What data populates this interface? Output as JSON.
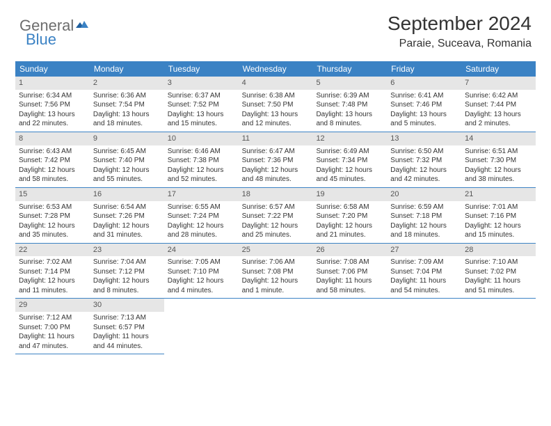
{
  "logo": {
    "part1": "General",
    "part2": "Blue"
  },
  "title": "September 2024",
  "location": "Paraie, Suceava, Romania",
  "colors": {
    "header_bg": "#3b82c4",
    "daynum_bg": "#e6e6e6",
    "border": "#3b82c4",
    "text": "#333333",
    "logo_gray": "#6d6d6d",
    "logo_blue": "#3b82c4"
  },
  "daysOfWeek": [
    "Sunday",
    "Monday",
    "Tuesday",
    "Wednesday",
    "Thursday",
    "Friday",
    "Saturday"
  ],
  "weeks": [
    [
      {
        "n": "1",
        "sr": "Sunrise: 6:34 AM",
        "ss": "Sunset: 7:56 PM",
        "d1": "Daylight: 13 hours",
        "d2": "and 22 minutes."
      },
      {
        "n": "2",
        "sr": "Sunrise: 6:36 AM",
        "ss": "Sunset: 7:54 PM",
        "d1": "Daylight: 13 hours",
        "d2": "and 18 minutes."
      },
      {
        "n": "3",
        "sr": "Sunrise: 6:37 AM",
        "ss": "Sunset: 7:52 PM",
        "d1": "Daylight: 13 hours",
        "d2": "and 15 minutes."
      },
      {
        "n": "4",
        "sr": "Sunrise: 6:38 AM",
        "ss": "Sunset: 7:50 PM",
        "d1": "Daylight: 13 hours",
        "d2": "and 12 minutes."
      },
      {
        "n": "5",
        "sr": "Sunrise: 6:39 AM",
        "ss": "Sunset: 7:48 PM",
        "d1": "Daylight: 13 hours",
        "d2": "and 8 minutes."
      },
      {
        "n": "6",
        "sr": "Sunrise: 6:41 AM",
        "ss": "Sunset: 7:46 PM",
        "d1": "Daylight: 13 hours",
        "d2": "and 5 minutes."
      },
      {
        "n": "7",
        "sr": "Sunrise: 6:42 AM",
        "ss": "Sunset: 7:44 PM",
        "d1": "Daylight: 13 hours",
        "d2": "and 2 minutes."
      }
    ],
    [
      {
        "n": "8",
        "sr": "Sunrise: 6:43 AM",
        "ss": "Sunset: 7:42 PM",
        "d1": "Daylight: 12 hours",
        "d2": "and 58 minutes."
      },
      {
        "n": "9",
        "sr": "Sunrise: 6:45 AM",
        "ss": "Sunset: 7:40 PM",
        "d1": "Daylight: 12 hours",
        "d2": "and 55 minutes."
      },
      {
        "n": "10",
        "sr": "Sunrise: 6:46 AM",
        "ss": "Sunset: 7:38 PM",
        "d1": "Daylight: 12 hours",
        "d2": "and 52 minutes."
      },
      {
        "n": "11",
        "sr": "Sunrise: 6:47 AM",
        "ss": "Sunset: 7:36 PM",
        "d1": "Daylight: 12 hours",
        "d2": "and 48 minutes."
      },
      {
        "n": "12",
        "sr": "Sunrise: 6:49 AM",
        "ss": "Sunset: 7:34 PM",
        "d1": "Daylight: 12 hours",
        "d2": "and 45 minutes."
      },
      {
        "n": "13",
        "sr": "Sunrise: 6:50 AM",
        "ss": "Sunset: 7:32 PM",
        "d1": "Daylight: 12 hours",
        "d2": "and 42 minutes."
      },
      {
        "n": "14",
        "sr": "Sunrise: 6:51 AM",
        "ss": "Sunset: 7:30 PM",
        "d1": "Daylight: 12 hours",
        "d2": "and 38 minutes."
      }
    ],
    [
      {
        "n": "15",
        "sr": "Sunrise: 6:53 AM",
        "ss": "Sunset: 7:28 PM",
        "d1": "Daylight: 12 hours",
        "d2": "and 35 minutes."
      },
      {
        "n": "16",
        "sr": "Sunrise: 6:54 AM",
        "ss": "Sunset: 7:26 PM",
        "d1": "Daylight: 12 hours",
        "d2": "and 31 minutes."
      },
      {
        "n": "17",
        "sr": "Sunrise: 6:55 AM",
        "ss": "Sunset: 7:24 PM",
        "d1": "Daylight: 12 hours",
        "d2": "and 28 minutes."
      },
      {
        "n": "18",
        "sr": "Sunrise: 6:57 AM",
        "ss": "Sunset: 7:22 PM",
        "d1": "Daylight: 12 hours",
        "d2": "and 25 minutes."
      },
      {
        "n": "19",
        "sr": "Sunrise: 6:58 AM",
        "ss": "Sunset: 7:20 PM",
        "d1": "Daylight: 12 hours",
        "d2": "and 21 minutes."
      },
      {
        "n": "20",
        "sr": "Sunrise: 6:59 AM",
        "ss": "Sunset: 7:18 PM",
        "d1": "Daylight: 12 hours",
        "d2": "and 18 minutes."
      },
      {
        "n": "21",
        "sr": "Sunrise: 7:01 AM",
        "ss": "Sunset: 7:16 PM",
        "d1": "Daylight: 12 hours",
        "d2": "and 15 minutes."
      }
    ],
    [
      {
        "n": "22",
        "sr": "Sunrise: 7:02 AM",
        "ss": "Sunset: 7:14 PM",
        "d1": "Daylight: 12 hours",
        "d2": "and 11 minutes."
      },
      {
        "n": "23",
        "sr": "Sunrise: 7:04 AM",
        "ss": "Sunset: 7:12 PM",
        "d1": "Daylight: 12 hours",
        "d2": "and 8 minutes."
      },
      {
        "n": "24",
        "sr": "Sunrise: 7:05 AM",
        "ss": "Sunset: 7:10 PM",
        "d1": "Daylight: 12 hours",
        "d2": "and 4 minutes."
      },
      {
        "n": "25",
        "sr": "Sunrise: 7:06 AM",
        "ss": "Sunset: 7:08 PM",
        "d1": "Daylight: 12 hours",
        "d2": "and 1 minute."
      },
      {
        "n": "26",
        "sr": "Sunrise: 7:08 AM",
        "ss": "Sunset: 7:06 PM",
        "d1": "Daylight: 11 hours",
        "d2": "and 58 minutes."
      },
      {
        "n": "27",
        "sr": "Sunrise: 7:09 AM",
        "ss": "Sunset: 7:04 PM",
        "d1": "Daylight: 11 hours",
        "d2": "and 54 minutes."
      },
      {
        "n": "28",
        "sr": "Sunrise: 7:10 AM",
        "ss": "Sunset: 7:02 PM",
        "d1": "Daylight: 11 hours",
        "d2": "and 51 minutes."
      }
    ],
    [
      {
        "n": "29",
        "sr": "Sunrise: 7:12 AM",
        "ss": "Sunset: 7:00 PM",
        "d1": "Daylight: 11 hours",
        "d2": "and 47 minutes."
      },
      {
        "n": "30",
        "sr": "Sunrise: 7:13 AM",
        "ss": "Sunset: 6:57 PM",
        "d1": "Daylight: 11 hours",
        "d2": "and 44 minutes."
      },
      null,
      null,
      null,
      null,
      null
    ]
  ]
}
